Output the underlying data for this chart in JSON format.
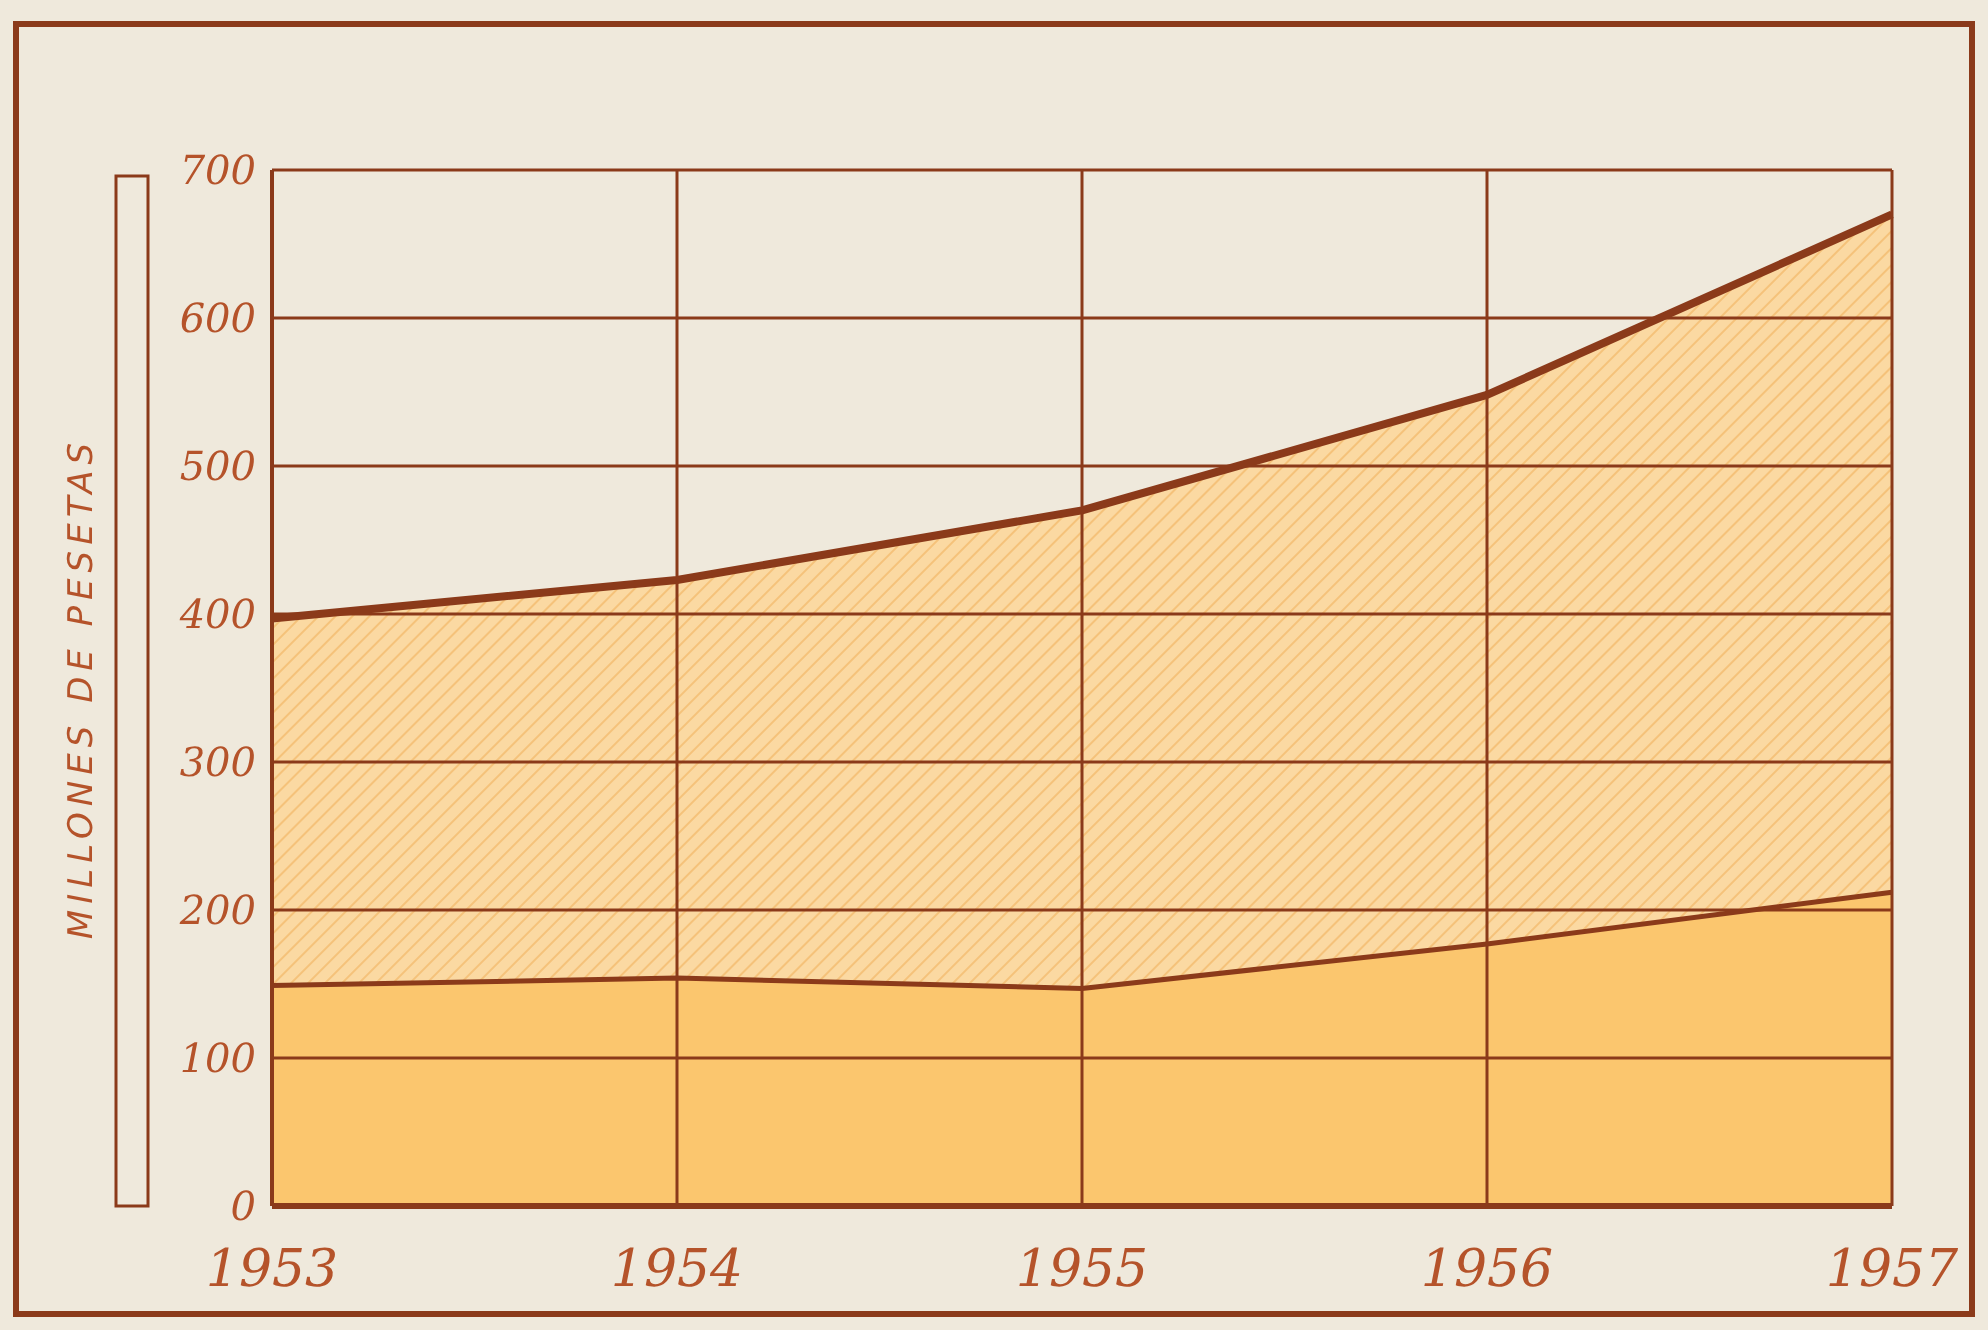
{
  "chart_data": {
    "type": "area",
    "ylabel": "MILLONES DE PESETAS",
    "x": [
      1953,
      1954,
      1955,
      1956,
      1957
    ],
    "xlim": [
      1953,
      1957
    ],
    "xticks": [
      1953,
      1954,
      1955,
      1956,
      1957
    ],
    "ylim": [
      0,
      700
    ],
    "yticks": [
      0,
      100,
      200,
      300,
      400,
      500,
      600,
      700
    ],
    "grid": true,
    "series": [
      {
        "color": "#fbd9a2",
        "values": [
          397,
          423,
          470,
          548,
          670
        ]
      },
      {
        "color": "#fbc66e",
        "values": [
          149,
          154,
          147,
          177,
          212
        ]
      }
    ]
  }
}
